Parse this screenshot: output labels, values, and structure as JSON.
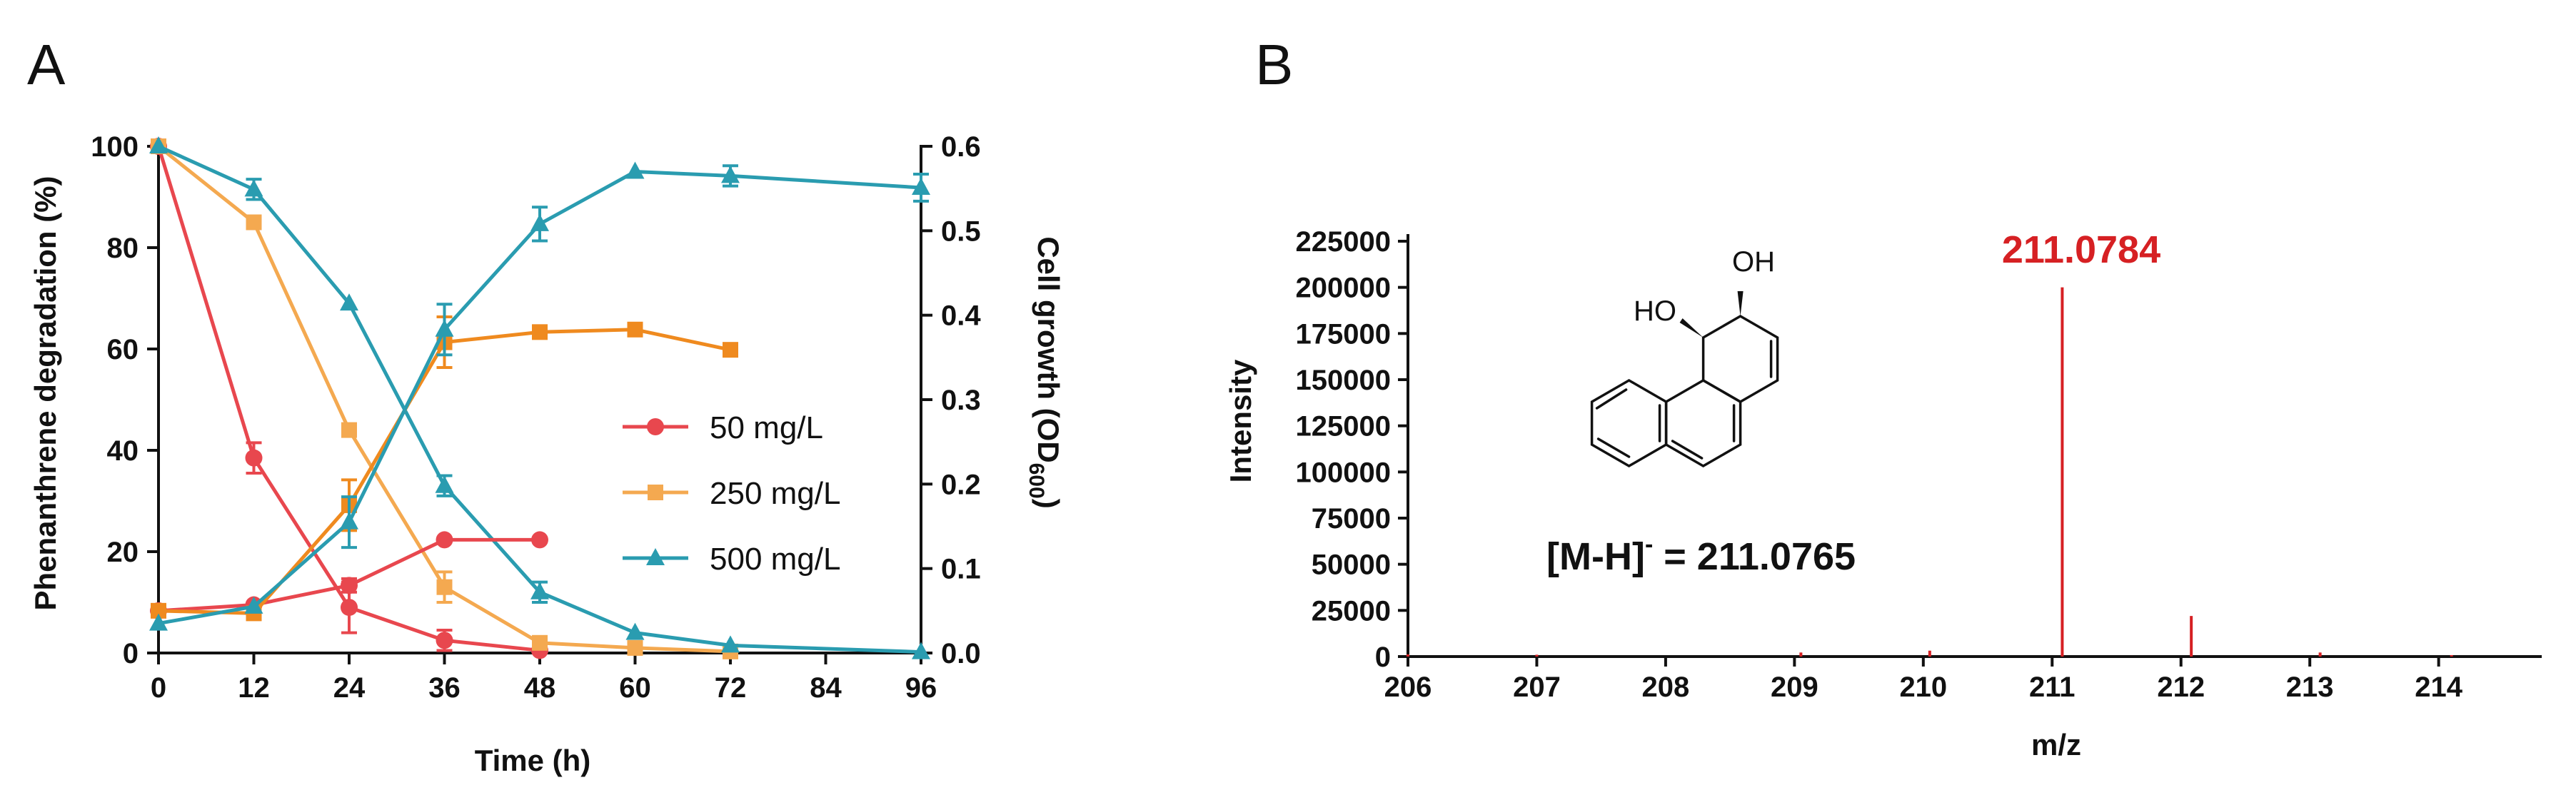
{
  "panels": {
    "a": "A",
    "b": "B"
  },
  "chart_data": [
    {
      "type": "line",
      "panel": "A",
      "xlabel": "Time (h)",
      "ylabel_left": "Phenanthrene degradation (%)",
      "ylabel_right": {
        "base": "Cell growth (OD",
        "sub": "600",
        "end": ")"
      },
      "x_ticks": [
        0,
        12,
        24,
        36,
        48,
        60,
        72,
        84,
        96
      ],
      "xlim": [
        0,
        96
      ],
      "y_left_ticks": [
        0,
        20,
        40,
        60,
        80,
        100
      ],
      "ylim_left": [
        0,
        100
      ],
      "y_right_ticks": [
        "0.0",
        "0.1",
        "0.2",
        "0.3",
        "0.4",
        "0.5",
        "0.6"
      ],
      "ylim_right": [
        0,
        0.6
      ],
      "legend_position": "right-middle",
      "series": [
        {
          "name": "50 mg/L",
          "color": "#e8474e",
          "marker": "circle",
          "kind": "degradation",
          "axis": "left",
          "x": [
            0,
            12,
            24,
            36,
            48
          ],
          "values": [
            100,
            38.5,
            9,
            2.5,
            0.5
          ],
          "err": [
            0,
            3,
            5,
            2,
            0
          ]
        },
        {
          "name": "250 mg/L",
          "color": "#f4a950",
          "marker": "square",
          "kind": "degradation",
          "axis": "left",
          "x": [
            0,
            12,
            24,
            36,
            48,
            60,
            72
          ],
          "values": [
            100,
            85,
            44,
            13,
            2,
            1,
            0.3
          ],
          "err": [
            0,
            0,
            0,
            3,
            0,
            0,
            0
          ]
        },
        {
          "name": "500 mg/L",
          "color": "#2a9cb0",
          "marker": "triangle",
          "kind": "degradation",
          "axis": "left",
          "x": [
            0,
            12,
            24,
            36,
            48,
            60,
            72,
            96
          ],
          "values": [
            100,
            91.5,
            69,
            33,
            12,
            4,
            1.5,
            0.2
          ],
          "err": [
            0,
            2,
            0,
            2,
            2,
            0,
            0,
            0
          ]
        },
        {
          "name": "50 mg/L",
          "color": "#e8474e",
          "marker": "circle",
          "kind": "growth",
          "axis": "right",
          "x": [
            0,
            12,
            24,
            36,
            48
          ],
          "values": [
            0.05,
            0.057,
            0.08,
            0.134,
            0.134
          ],
          "err": [
            0,
            0,
            0.008,
            0,
            0
          ]
        },
        {
          "name": "250 mg/L",
          "color": "#ef8a1f",
          "marker": "square",
          "kind": "growth",
          "axis": "right",
          "x": [
            0,
            12,
            24,
            36,
            48,
            60,
            72
          ],
          "values": [
            0.05,
            0.047,
            0.175,
            0.368,
            0.38,
            0.383,
            0.359
          ],
          "err": [
            0,
            0,
            0.03,
            0.03,
            0,
            0,
            0
          ]
        },
        {
          "name": "500 mg/L",
          "color": "#2a9cb0",
          "marker": "triangle",
          "kind": "growth",
          "axis": "right",
          "x": [
            0,
            12,
            24,
            36,
            48,
            60,
            72,
            96
          ],
          "values": [
            0.035,
            0.055,
            0.155,
            0.383,
            0.508,
            0.57,
            0.565,
            0.551
          ],
          "err": [
            0,
            0,
            0.03,
            0.03,
            0.02,
            0,
            0.012,
            0.016
          ]
        }
      ]
    },
    {
      "type": "bar",
      "panel": "B",
      "xlabel": "m/z",
      "ylabel": "Intensity",
      "x_ticks": [
        206,
        207,
        208,
        209,
        210,
        211,
        212,
        213,
        214
      ],
      "xlim": [
        206,
        214.8
      ],
      "y_ticks": [
        "0",
        "25000",
        "50000",
        "75000",
        "100000",
        "125000",
        "150000",
        "175000",
        "200000",
        "225000"
      ],
      "ylim": [
        0,
        225000
      ],
      "color": "#d62023",
      "peaks": [
        {
          "mz": 206.0,
          "intensity": 1200
        },
        {
          "mz": 207.0,
          "intensity": 1000
        },
        {
          "mz": 209.05,
          "intensity": 2200
        },
        {
          "mz": 210.05,
          "intensity": 3200
        },
        {
          "mz": 211.0784,
          "intensity": 200000
        },
        {
          "mz": 212.08,
          "intensity": 22000
        },
        {
          "mz": 213.08,
          "intensity": 2200
        },
        {
          "mz": 214.1,
          "intensity": 800
        }
      ],
      "peak_label": "211.0784",
      "structure_labels": {
        "oh_top": "OH",
        "oh_left": "HO"
      },
      "formula": {
        "base": "[M-H]",
        "sup": "-",
        "rest": " = 211.0765"
      }
    }
  ]
}
